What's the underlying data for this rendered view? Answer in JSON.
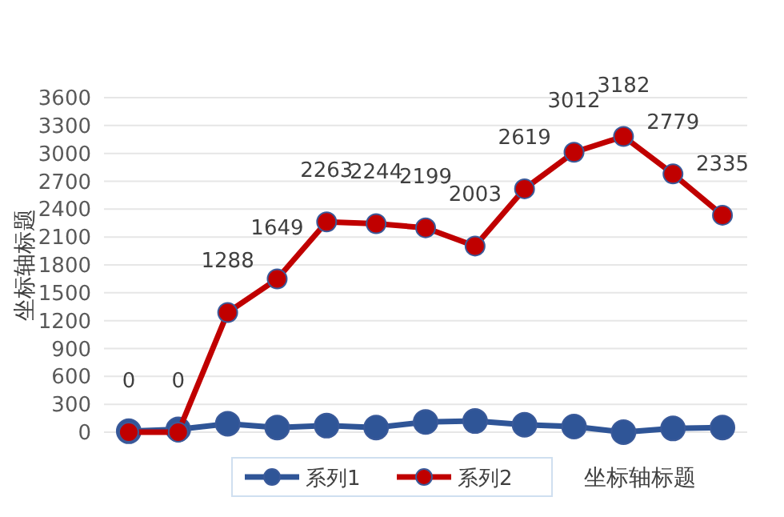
{
  "chart_data": {
    "type": "line",
    "xlabel": "坐标轴标题",
    "ylabel": "坐标轴标题",
    "categories": [
      null,
      null,
      null,
      null,
      null,
      null,
      null,
      null,
      null,
      null,
      null,
      null,
      null
    ],
    "series": [
      {
        "name": "系列1",
        "color": "#2f5597",
        "values": [
          10,
          30,
          90,
          50,
          70,
          50,
          110,
          120,
          80,
          60,
          0,
          40,
          50
        ]
      },
      {
        "name": "系列2",
        "color": "#c00000",
        "values": [
          0,
          0,
          1288,
          1649,
          2263,
          2244,
          2199,
          2003,
          2619,
          3012,
          3182,
          2779,
          2335
        ],
        "value_labels": [
          "0",
          "0",
          "1288",
          "1649",
          "2263",
          "2244",
          "2199",
          "2003",
          "2619",
          "3012",
          "3182",
          "2779",
          "2335"
        ]
      }
    ],
    "ylim": [
      0,
      3600
    ],
    "yticks": [
      0,
      300,
      600,
      900,
      1200,
      1500,
      1800,
      2100,
      2400,
      2700,
      3000,
      3300,
      3600
    ],
    "grid": "y",
    "legend": "bottom",
    "marker": "circle",
    "line_style": "solid"
  }
}
